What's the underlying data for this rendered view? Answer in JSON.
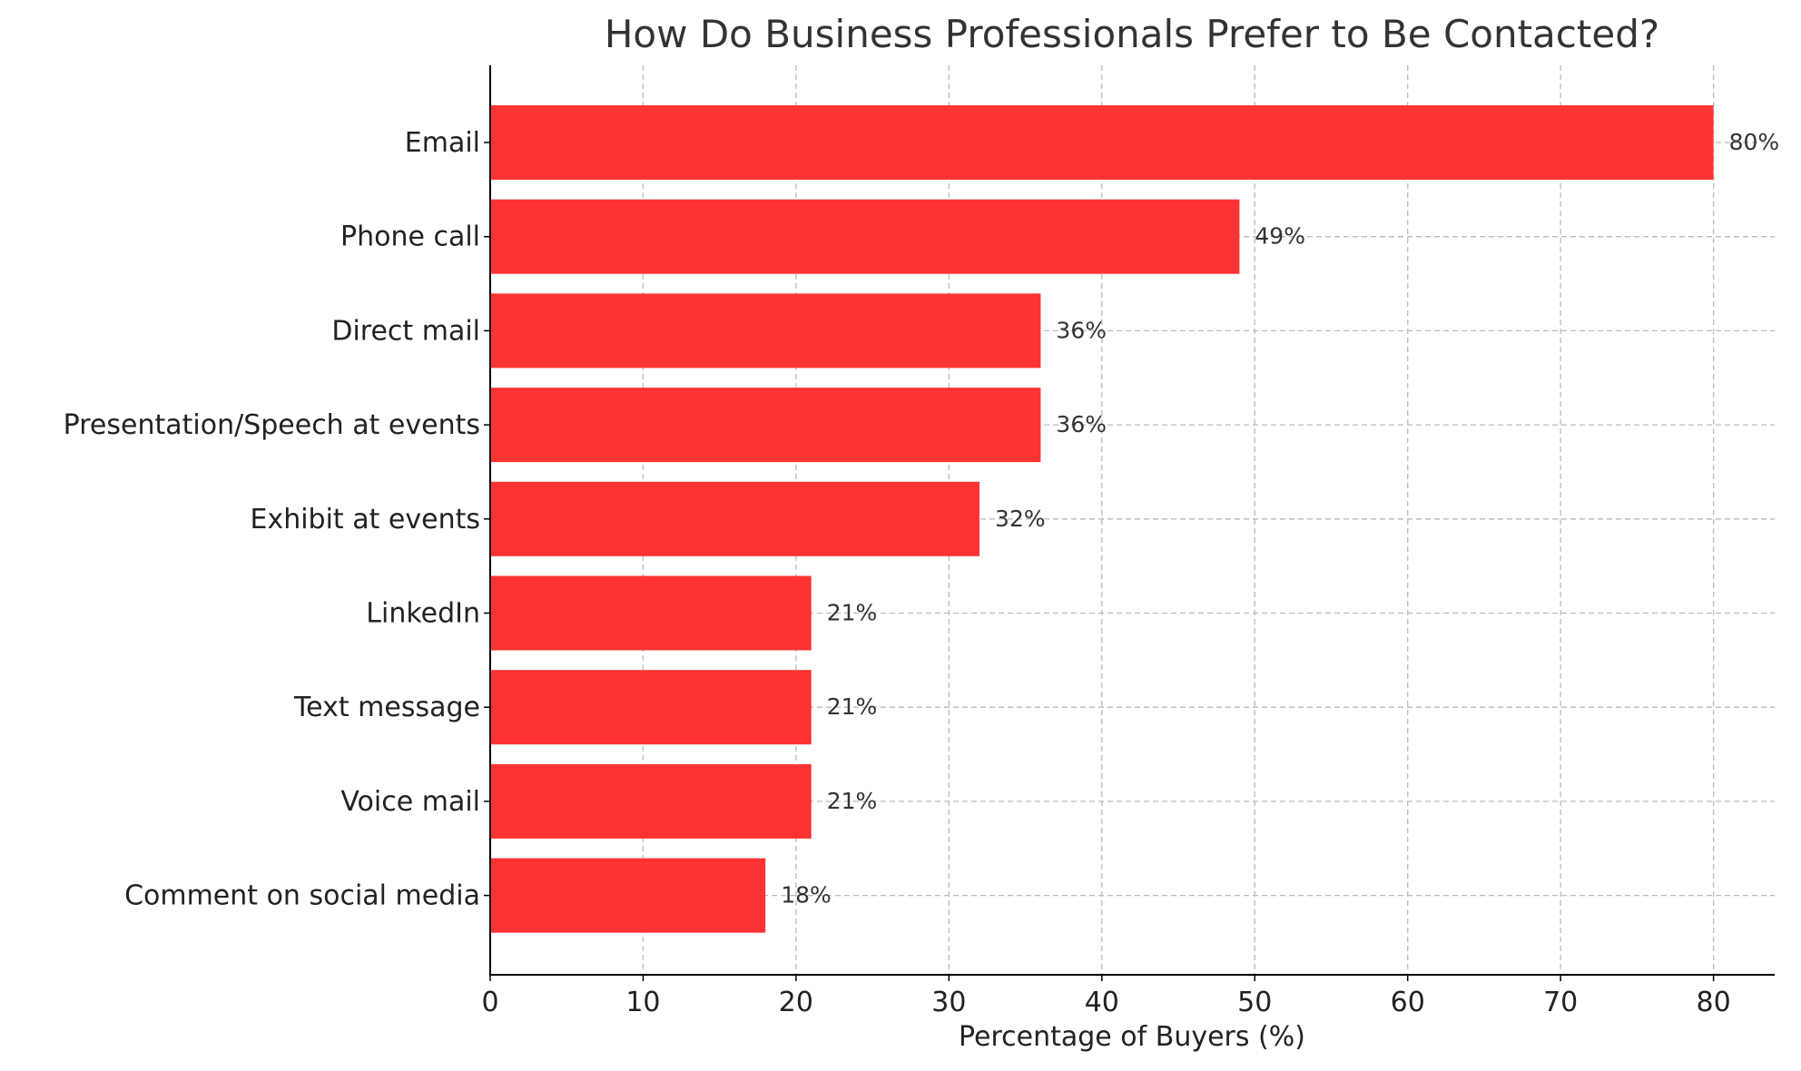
{
  "chart_data": {
    "type": "bar",
    "orientation": "horizontal",
    "title": "How Do Business Professionals Prefer to Be Contacted?",
    "xlabel": "Percentage of Buyers (%)",
    "ylabel": "",
    "categories": [
      "Email",
      "Phone call",
      "Direct mail",
      "Presentation/Speech at events",
      "Exhibit at events",
      "LinkedIn",
      "Text message",
      "Voice mail",
      "Comment on social media"
    ],
    "values": [
      80,
      49,
      36,
      36,
      32,
      21,
      21,
      21,
      18
    ],
    "data_labels": [
      "80%",
      "49%",
      "36%",
      "36%",
      "32%",
      "21%",
      "21%",
      "21%",
      "18%"
    ],
    "xlim": [
      0,
      84
    ],
    "xticks": [
      0,
      10,
      20,
      30,
      40,
      50,
      60,
      70,
      80
    ],
    "xtick_labels": [
      "0",
      "10",
      "20",
      "30",
      "40",
      "50",
      "60",
      "70",
      "80"
    ],
    "grid": true,
    "grid_style": "dashed",
    "bar_color": "#ff3333"
  }
}
